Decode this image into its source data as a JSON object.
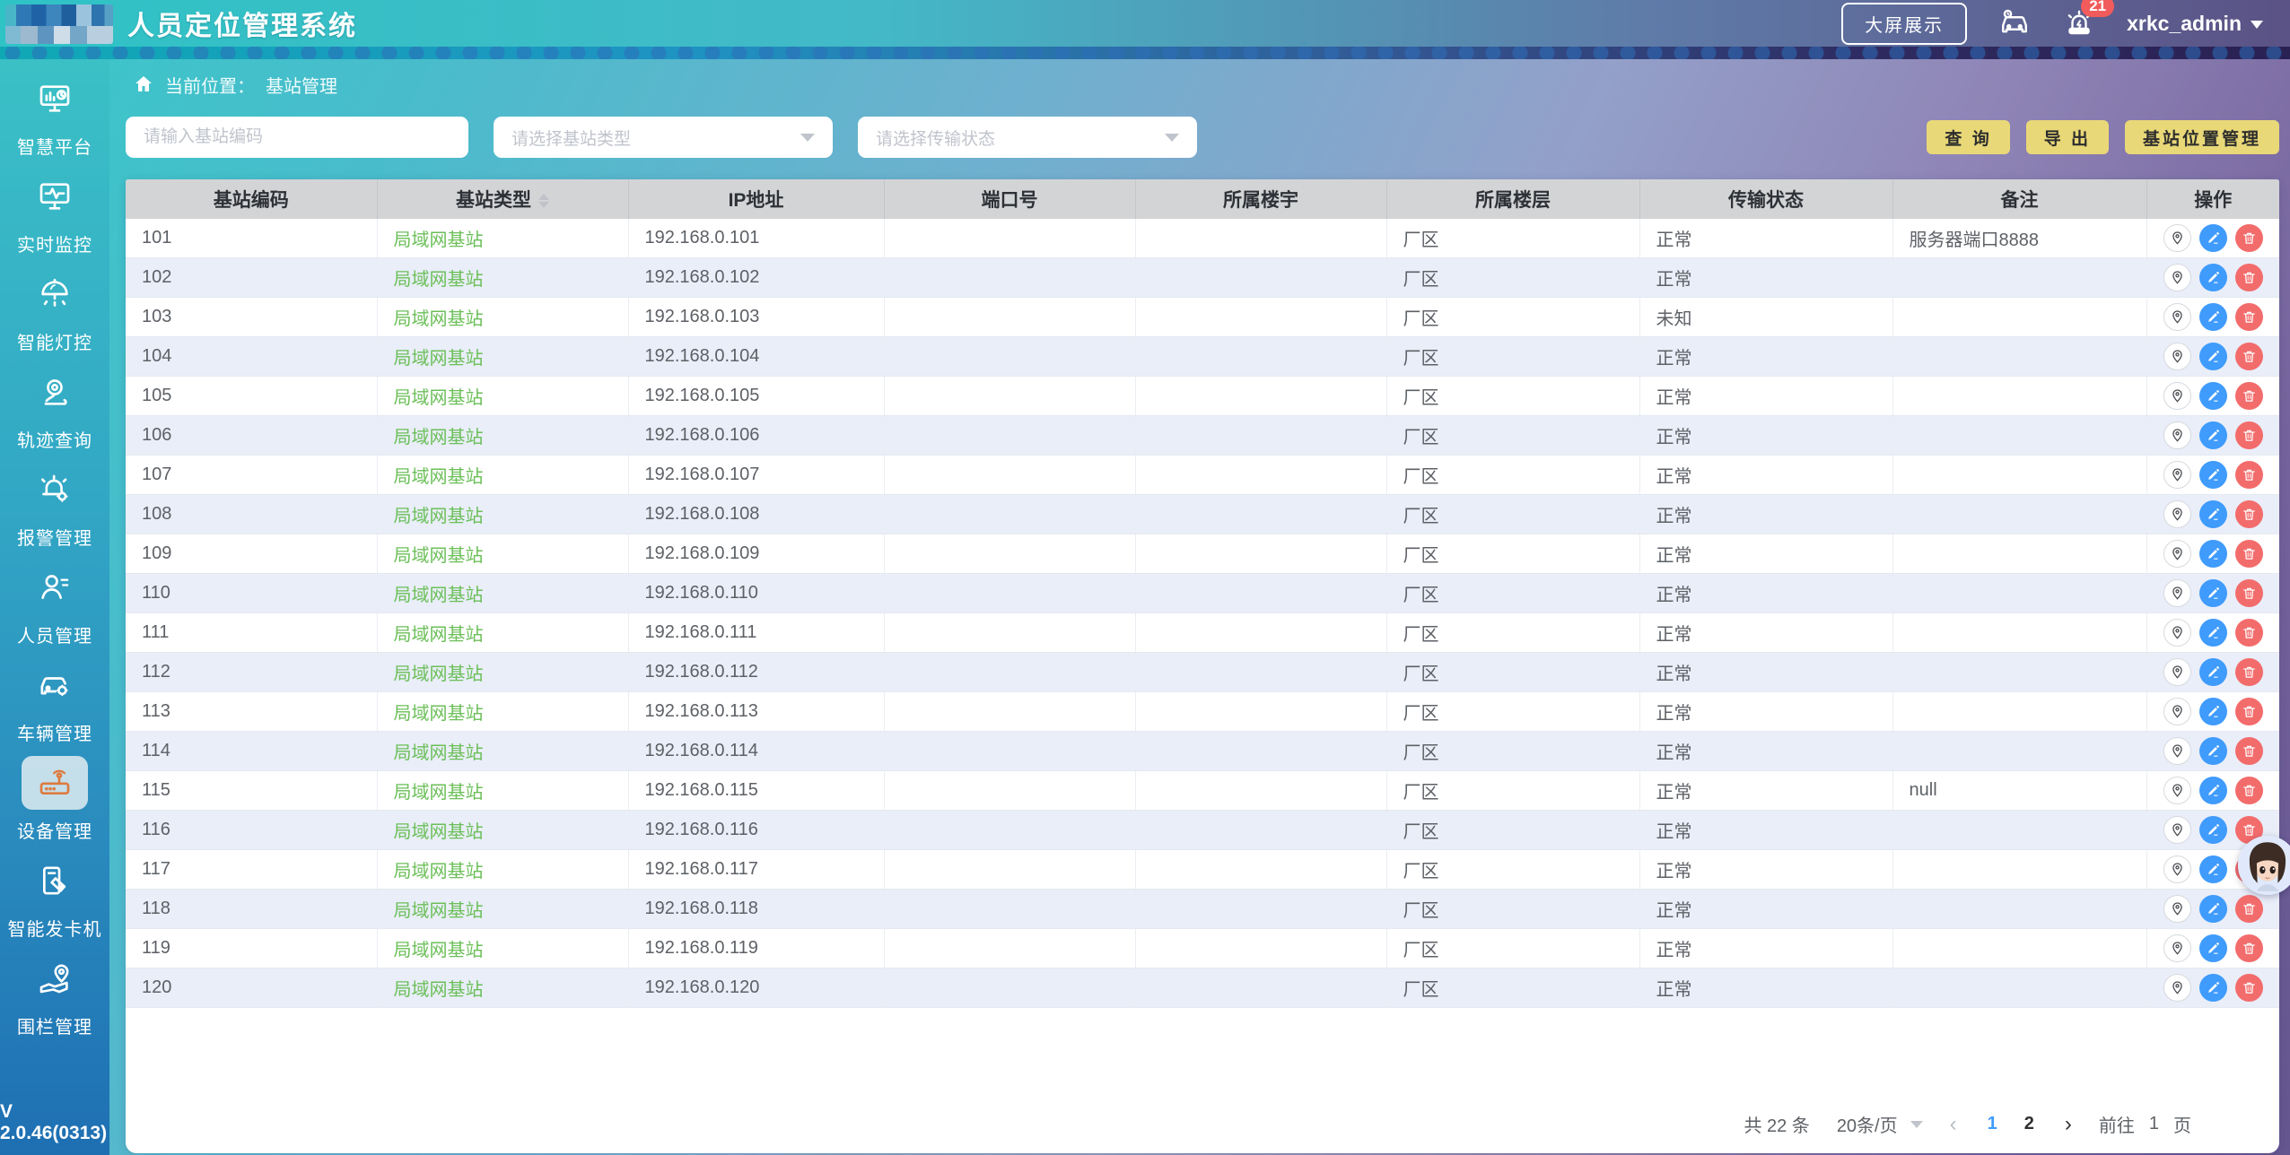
{
  "app": {
    "title": "人员定位管理系统",
    "version": "V 2.0.46(0313)"
  },
  "header": {
    "big_screen_label": "大屏展示",
    "alarm_badge": "21",
    "username": "xrkc_admin"
  },
  "sidebar": {
    "items": [
      {
        "id": "smart-platform",
        "label": "智慧平台",
        "icon": "smart-platform-icon",
        "active": false
      },
      {
        "id": "realtime-monitor",
        "label": "实时监控",
        "icon": "realtime-monitor-icon",
        "active": false
      },
      {
        "id": "smart-light",
        "label": "智能灯控",
        "icon": "smart-light-icon",
        "active": false
      },
      {
        "id": "track-query",
        "label": "轨迹查询",
        "icon": "track-query-icon",
        "active": false
      },
      {
        "id": "alarm-manage",
        "label": "报警管理",
        "icon": "alarm-manage-icon",
        "active": false
      },
      {
        "id": "personnel-manage",
        "label": "人员管理",
        "icon": "personnel-icon",
        "active": false
      },
      {
        "id": "vehicle-manage",
        "label": "车辆管理",
        "icon": "vehicle-manage-icon",
        "active": false
      },
      {
        "id": "device-manage",
        "label": "设备管理",
        "icon": "device-icon",
        "active": true
      },
      {
        "id": "card-machine",
        "label": "智能发卡机",
        "icon": "card-machine-icon",
        "active": false
      },
      {
        "id": "fence-manage",
        "label": "围栏管理",
        "icon": "fence-icon",
        "active": false
      }
    ]
  },
  "breadcrumb": {
    "prefix": "当前位置：",
    "current": "基站管理"
  },
  "filters": {
    "code_placeholder": "请输入基站编码",
    "type_placeholder": "请选择基站类型",
    "status_placeholder": "请选择传输状态"
  },
  "actions": {
    "query": "查 询",
    "export": "导 出",
    "position_manage": "基站位置管理"
  },
  "table": {
    "columns": [
      {
        "key": "code",
        "label": "基站编码",
        "sortable": false
      },
      {
        "key": "type",
        "label": "基站类型",
        "sortable": true
      },
      {
        "key": "ip",
        "label": "IP地址",
        "sortable": false
      },
      {
        "key": "port",
        "label": "端口号",
        "sortable": false
      },
      {
        "key": "building",
        "label": "所属楼宇",
        "sortable": false
      },
      {
        "key": "floor",
        "label": "所属楼层",
        "sortable": false
      },
      {
        "key": "status",
        "label": "传输状态",
        "sortable": false
      },
      {
        "key": "remark",
        "label": "备注",
        "sortable": false
      },
      {
        "key": "ops",
        "label": "操作",
        "sortable": false
      }
    ],
    "rows": [
      {
        "code": "101",
        "type": "局域网基站",
        "ip": "192.168.0.101",
        "port": "",
        "building": "",
        "floor": "厂区",
        "status": "正常",
        "remark": "服务器端口8888"
      },
      {
        "code": "102",
        "type": "局域网基站",
        "ip": "192.168.0.102",
        "port": "",
        "building": "",
        "floor": "厂区",
        "status": "正常",
        "remark": ""
      },
      {
        "code": "103",
        "type": "局域网基站",
        "ip": "192.168.0.103",
        "port": "",
        "building": "",
        "floor": "厂区",
        "status": "未知",
        "remark": ""
      },
      {
        "code": "104",
        "type": "局域网基站",
        "ip": "192.168.0.104",
        "port": "",
        "building": "",
        "floor": "厂区",
        "status": "正常",
        "remark": ""
      },
      {
        "code": "105",
        "type": "局域网基站",
        "ip": "192.168.0.105",
        "port": "",
        "building": "",
        "floor": "厂区",
        "status": "正常",
        "remark": ""
      },
      {
        "code": "106",
        "type": "局域网基站",
        "ip": "192.168.0.106",
        "port": "",
        "building": "",
        "floor": "厂区",
        "status": "正常",
        "remark": ""
      },
      {
        "code": "107",
        "type": "局域网基站",
        "ip": "192.168.0.107",
        "port": "",
        "building": "",
        "floor": "厂区",
        "status": "正常",
        "remark": ""
      },
      {
        "code": "108",
        "type": "局域网基站",
        "ip": "192.168.0.108",
        "port": "",
        "building": "",
        "floor": "厂区",
        "status": "正常",
        "remark": ""
      },
      {
        "code": "109",
        "type": "局域网基站",
        "ip": "192.168.0.109",
        "port": "",
        "building": "",
        "floor": "厂区",
        "status": "正常",
        "remark": ""
      },
      {
        "code": "110",
        "type": "局域网基站",
        "ip": "192.168.0.110",
        "port": "",
        "building": "",
        "floor": "厂区",
        "status": "正常",
        "remark": ""
      },
      {
        "code": "111",
        "type": "局域网基站",
        "ip": "192.168.0.111",
        "port": "",
        "building": "",
        "floor": "厂区",
        "status": "正常",
        "remark": ""
      },
      {
        "code": "112",
        "type": "局域网基站",
        "ip": "192.168.0.112",
        "port": "",
        "building": "",
        "floor": "厂区",
        "status": "正常",
        "remark": ""
      },
      {
        "code": "113",
        "type": "局域网基站",
        "ip": "192.168.0.113",
        "port": "",
        "building": "",
        "floor": "厂区",
        "status": "正常",
        "remark": ""
      },
      {
        "code": "114",
        "type": "局域网基站",
        "ip": "192.168.0.114",
        "port": "",
        "building": "",
        "floor": "厂区",
        "status": "正常",
        "remark": ""
      },
      {
        "code": "115",
        "type": "局域网基站",
        "ip": "192.168.0.115",
        "port": "",
        "building": "",
        "floor": "厂区",
        "status": "正常",
        "remark": "null"
      },
      {
        "code": "116",
        "type": "局域网基站",
        "ip": "192.168.0.116",
        "port": "",
        "building": "",
        "floor": "厂区",
        "status": "正常",
        "remark": ""
      },
      {
        "code": "117",
        "type": "局域网基站",
        "ip": "192.168.0.117",
        "port": "",
        "building": "",
        "floor": "厂区",
        "status": "正常",
        "remark": ""
      },
      {
        "code": "118",
        "type": "局域网基站",
        "ip": "192.168.0.118",
        "port": "",
        "building": "",
        "floor": "厂区",
        "status": "正常",
        "remark": ""
      },
      {
        "code": "119",
        "type": "局域网基站",
        "ip": "192.168.0.119",
        "port": "",
        "building": "",
        "floor": "厂区",
        "status": "正常",
        "remark": ""
      },
      {
        "code": "120",
        "type": "局域网基站",
        "ip": "192.168.0.120",
        "port": "",
        "building": "",
        "floor": "厂区",
        "status": "正常",
        "remark": ""
      }
    ]
  },
  "pagination": {
    "total_label": "共 22 条",
    "per_page_label": "20条/页",
    "pages": [
      "1",
      "2"
    ],
    "active_page": "1",
    "goto_prefix": "前往",
    "goto_value": "1",
    "goto_suffix": "页"
  },
  "colors": {
    "accent_blue": "#3f9bfc",
    "danger_red": "#f36c6c",
    "type_green": "#6bbf58",
    "button_yellow": "#e9d878",
    "stripe_blue": "#e9eef9"
  }
}
